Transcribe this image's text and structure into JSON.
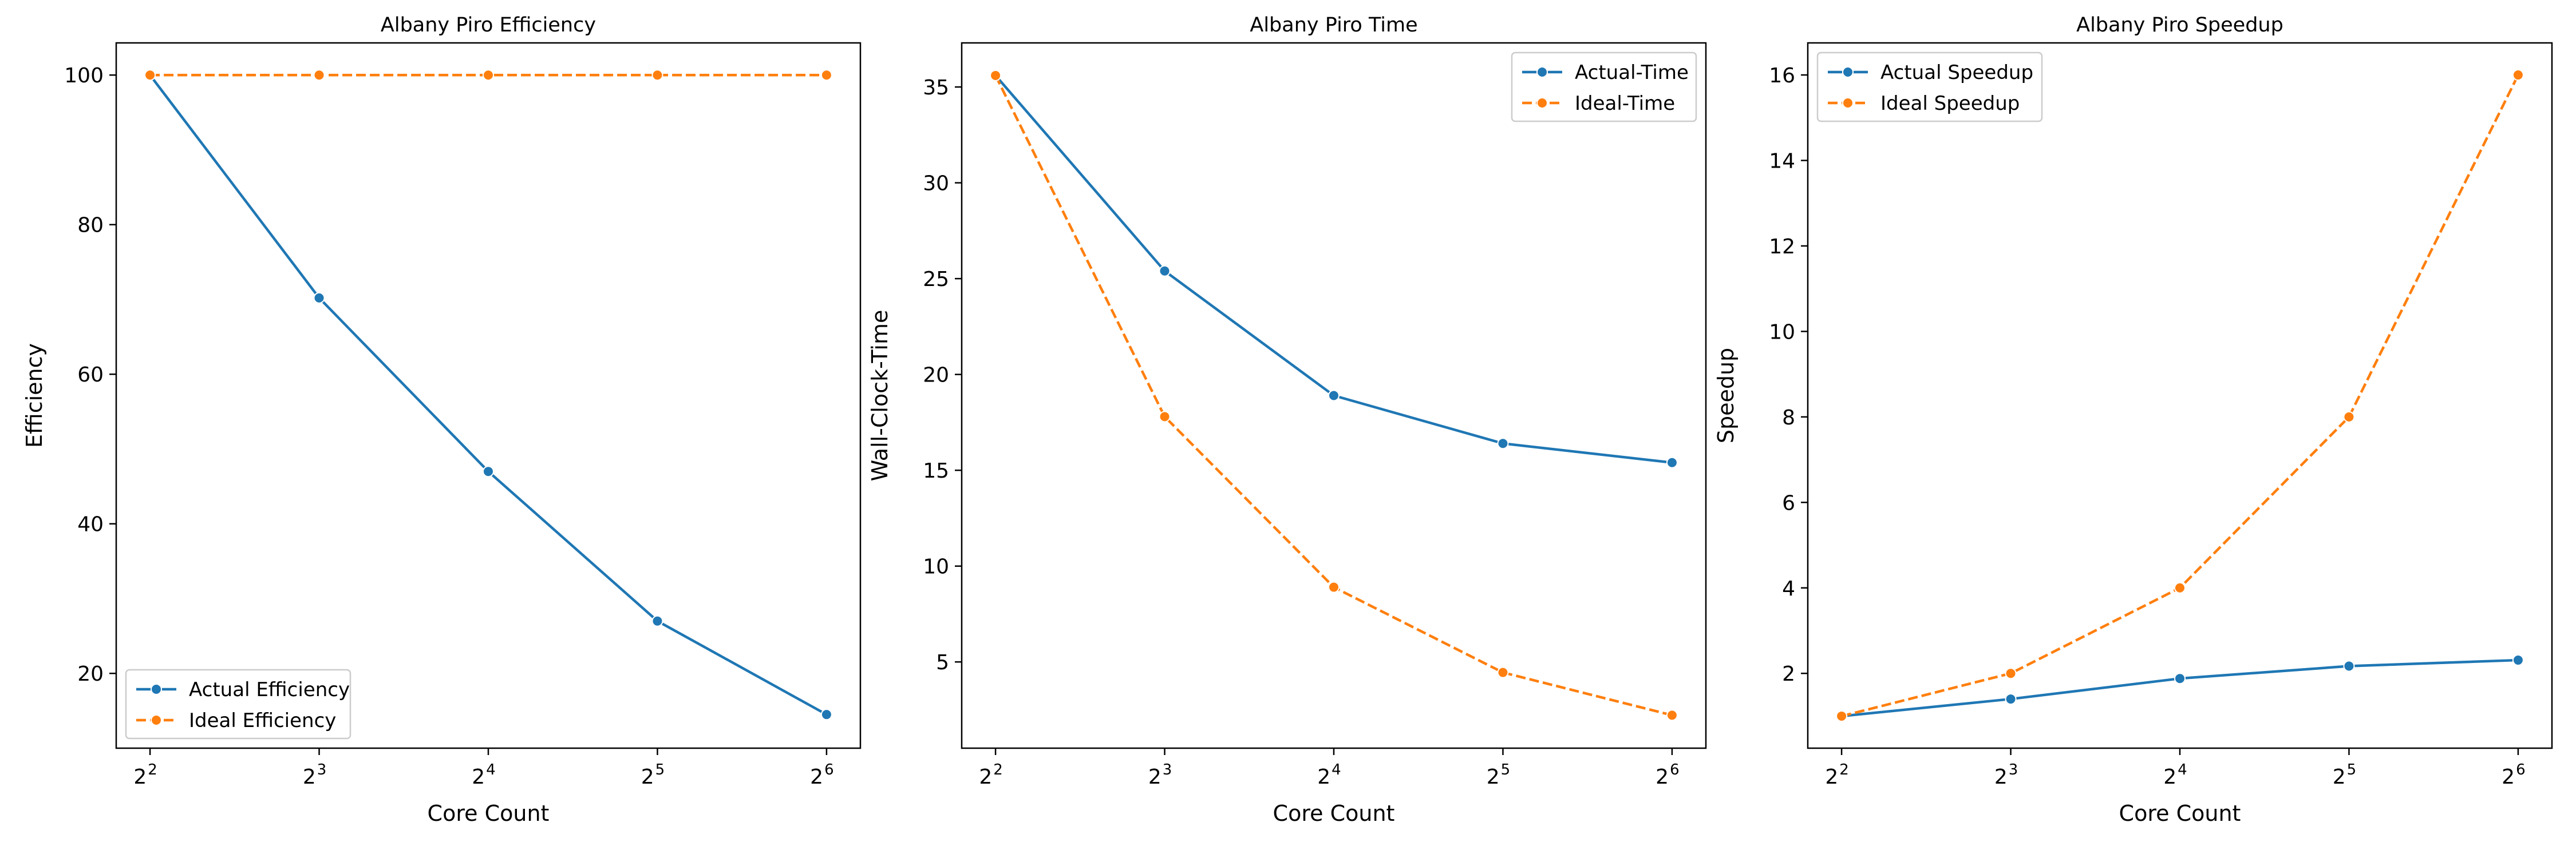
{
  "chart_data": [
    {
      "type": "line",
      "title": "Albany Piro Efficiency",
      "xlabel": "Core Count",
      "ylabel": "Efficiency",
      "x": [
        4,
        8,
        16,
        32,
        64
      ],
      "x_scale": "log2",
      "x_tick_labels": [
        {
          "base": "2",
          "exp": "2"
        },
        {
          "base": "2",
          "exp": "3"
        },
        {
          "base": "2",
          "exp": "4"
        },
        {
          "base": "2",
          "exp": "5"
        },
        {
          "base": "2",
          "exp": "6"
        }
      ],
      "ylim": [
        10,
        104.3
      ],
      "yticks": [
        20,
        40,
        60,
        80,
        100
      ],
      "legend": "lower-left",
      "series": [
        {
          "name": "Actual Efficiency",
          "values": [
            100,
            70.2,
            47.0,
            27.0,
            14.5
          ],
          "color": "#1f77b4",
          "style": "solid"
        },
        {
          "name": "Ideal Efficiency",
          "values": [
            100,
            100,
            100,
            100,
            100
          ],
          "color": "#ff7f0e",
          "style": "dashed"
        }
      ]
    },
    {
      "type": "line",
      "title": "Albany Piro Time",
      "xlabel": "Core Count",
      "ylabel": "Wall-Clock-Time",
      "x": [
        4,
        8,
        16,
        32,
        64
      ],
      "x_scale": "log2",
      "x_tick_labels": [
        {
          "base": "2",
          "exp": "2"
        },
        {
          "base": "2",
          "exp": "3"
        },
        {
          "base": "2",
          "exp": "4"
        },
        {
          "base": "2",
          "exp": "5"
        },
        {
          "base": "2",
          "exp": "6"
        }
      ],
      "ylim": [
        0.5,
        37.3
      ],
      "yticks": [
        5,
        10,
        15,
        20,
        25,
        30,
        35
      ],
      "legend": "upper-right",
      "series": [
        {
          "name": "Actual-Time",
          "values": [
            35.6,
            25.4,
            18.9,
            16.4,
            15.4
          ],
          "color": "#1f77b4",
          "style": "solid"
        },
        {
          "name": "Ideal-Time",
          "values": [
            35.6,
            17.8,
            8.9,
            4.45,
            2.22
          ],
          "color": "#ff7f0e",
          "style": "dashed"
        }
      ]
    },
    {
      "type": "line",
      "title": "Albany Piro Speedup",
      "xlabel": "Core Count",
      "ylabel": "Speedup",
      "x": [
        4,
        8,
        16,
        32,
        64
      ],
      "x_scale": "log2",
      "x_tick_labels": [
        {
          "base": "2",
          "exp": "2"
        },
        {
          "base": "2",
          "exp": "3"
        },
        {
          "base": "2",
          "exp": "4"
        },
        {
          "base": "2",
          "exp": "5"
        },
        {
          "base": "2",
          "exp": "6"
        }
      ],
      "ylim": [
        0.25,
        16.75
      ],
      "yticks": [
        2,
        4,
        6,
        8,
        10,
        12,
        14,
        16
      ],
      "legend": "upper-left",
      "series": [
        {
          "name": "Actual Speedup",
          "values": [
            1.0,
            1.4,
            1.88,
            2.17,
            2.31
          ],
          "color": "#1f77b4",
          "style": "solid"
        },
        {
          "name": "Ideal Speedup",
          "values": [
            1,
            2,
            4,
            8,
            16
          ],
          "color": "#ff7f0e",
          "style": "dashed"
        }
      ]
    }
  ]
}
